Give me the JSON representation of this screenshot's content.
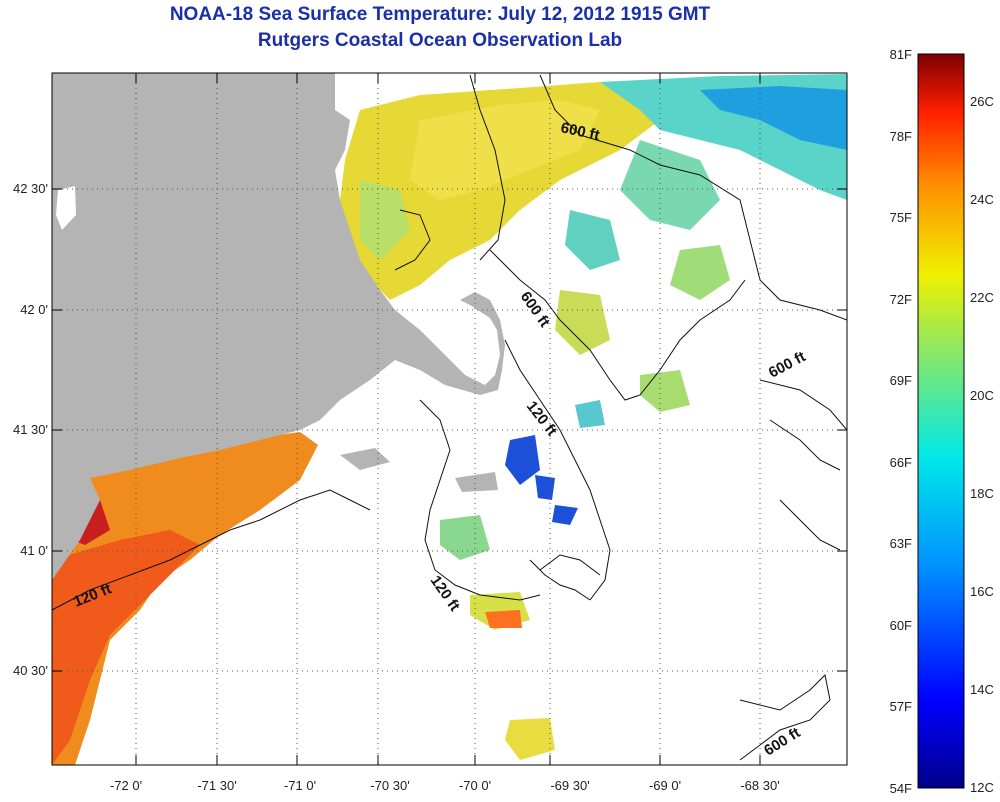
{
  "title": "NOAA-18 Sea Surface Temperature:  July 12, 2012 1915 GMT",
  "subtitle": "Rutgers Coastal Ocean Observation Lab",
  "lat_labels": [
    "42 30'",
    "42 0'",
    "41 30'",
    "41 0'",
    "40 30'"
  ],
  "lon_labels": [
    "-72 0'",
    "-71 30'",
    "-71 0'",
    "-70 30'",
    "-70 0'",
    "-69 30'",
    "-69 0'",
    "-68 30'"
  ],
  "contour_labels": [
    "600 ft",
    "600 ft",
    "600 ft",
    "600 ft",
    "120 ft",
    "120 ft",
    "120 ft"
  ],
  "colorbar": {
    "fahrenheit": [
      "81F",
      "78F",
      "75F",
      "72F",
      "69F",
      "66F",
      "63F",
      "60F",
      "57F",
      "54F"
    ],
    "celsius": [
      "26C",
      "24C",
      "22C",
      "20C",
      "18C",
      "16C",
      "14C",
      "12C"
    ]
  },
  "colors": {
    "title": "#1a2fa8",
    "land": "#b4b4b4",
    "no_data": "#ffffff",
    "warm": "#e8401a",
    "mid": "#e8d83a",
    "cool": "#2a8ad8"
  }
}
